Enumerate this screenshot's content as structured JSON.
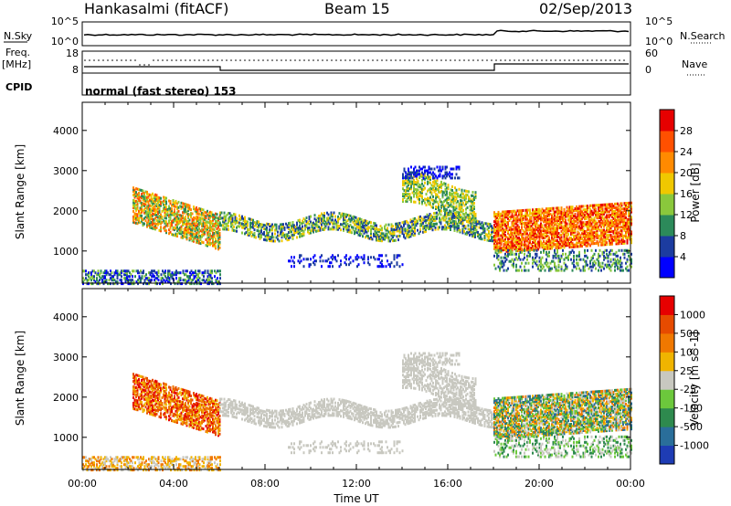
{
  "header": {
    "site": "Hankasalmi (fitACF)",
    "beam": "Beam 15",
    "date": "02/Sep/2013"
  },
  "noise_panel": {
    "left_label": "N.Sky",
    "right_label": "N.Search",
    "left_ticks": [
      "10^5",
      "10^0"
    ],
    "right_ticks": [
      "10^5",
      "10^0"
    ]
  },
  "freq_panel": {
    "left_label": "Freq.",
    "left_unit": "[MHz]",
    "right_label": "Nave",
    "left_ticks": [
      "18",
      "8"
    ],
    "right_ticks": [
      "60",
      "0"
    ]
  },
  "cpid_panel": {
    "label": "CPID",
    "text": "normal (fast stereo) 153"
  },
  "chart_data": [
    {
      "type": "heatmap",
      "name": "power",
      "ylabel": "Slant Range [km]",
      "xlabel": "Time UT",
      "y_ticks": [
        "1000",
        "2000",
        "3000",
        "4000"
      ],
      "ylim": [
        200,
        4700
      ],
      "colorbar": {
        "label": "Power [dB]",
        "ticks": [
          "4",
          "8",
          "12",
          "16",
          "20",
          "24",
          "28"
        ],
        "colors": [
          "#0000ff",
          "#1c3ca0",
          "#2c8a5a",
          "#8ac83c",
          "#f0c800",
          "#ff8a00",
          "#ff5000",
          "#e60000"
        ]
      }
    },
    {
      "type": "heatmap",
      "name": "velocity",
      "ylabel": "Slant Range [km]",
      "xlabel": "Time UT",
      "y_ticks": [
        "1000",
        "2000",
        "3000",
        "4000"
      ],
      "ylim": [
        200,
        4700
      ],
      "colorbar": {
        "label": "Velocity [m s^-1]",
        "ticks": [
          "1000",
          "500",
          "100",
          "25",
          "-25",
          "-100",
          "-500",
          "-1000"
        ],
        "colors": [
          "#1e3cb4",
          "#2a6e9a",
          "#2e8a4e",
          "#6cc83c",
          "#c8c8c0",
          "#f0b400",
          "#f07800",
          "#e64b00",
          "#e60000"
        ]
      }
    }
  ],
  "x_axis": {
    "label": "Time UT",
    "ticks": [
      "00:00",
      "04:00",
      "08:00",
      "12:00",
      "16:00",
      "20:00",
      "00:00"
    ]
  }
}
